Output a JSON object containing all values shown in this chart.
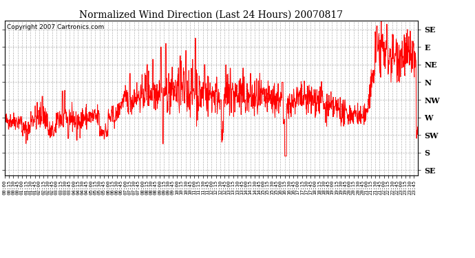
{
  "title": "Normalized Wind Direction (Last 24 Hours) 20070817",
  "copyright": "Copyright 2007 Cartronics.com",
  "line_color": "#FF0000",
  "background_color": "#FFFFFF",
  "plot_background": "#FFFFFF",
  "grid_color": "#AAAAAA",
  "ytick_labels": [
    "SE",
    "E",
    "NE",
    "N",
    "NW",
    "W",
    "SW",
    "S",
    "SE"
  ],
  "ytick_values": [
    8,
    7,
    6,
    5,
    4,
    3,
    2,
    1,
    0
  ],
  "ylim": [
    -0.3,
    8.5
  ],
  "seed": 42,
  "figsize": [
    6.9,
    3.75
  ],
  "dpi": 100
}
